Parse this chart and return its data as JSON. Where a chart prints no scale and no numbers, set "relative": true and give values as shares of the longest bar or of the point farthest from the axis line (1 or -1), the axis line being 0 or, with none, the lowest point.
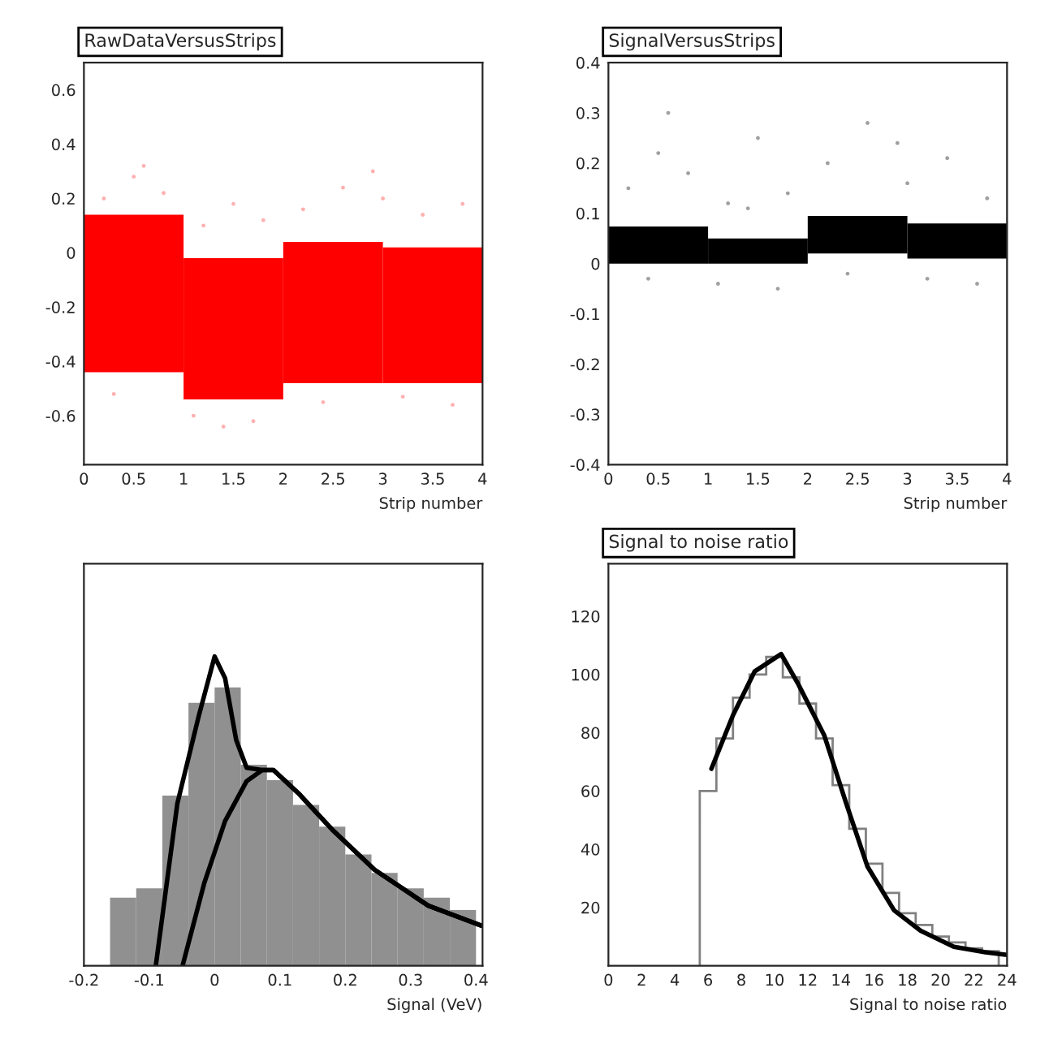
{
  "chart_data": [
    {
      "type": "bar",
      "title": "RawDataVersusStrips",
      "xlabel": "Strip number",
      "xlim": [
        0,
        4
      ],
      "xticks": [
        0,
        0.5,
        1,
        1.5,
        2,
        2.5,
        3,
        3.5,
        4
      ],
      "ylim": [
        -0.78,
        0.7
      ],
      "yticks": [
        -0.6,
        -0.4,
        -0.2,
        0,
        0.2,
        0.4,
        0.6
      ],
      "series": [
        {
          "color": "#ff0000",
          "x": [
            0.5,
            1.5,
            2.5,
            3.5
          ],
          "base": [
            -0.44,
            -0.54,
            -0.48,
            -0.48
          ],
          "values": [
            0.58,
            0.52,
            0.52,
            0.5
          ]
        },
        {
          "type": "scatter",
          "color": "#ffb0b0",
          "x": [
            0.2,
            0.5,
            0.8,
            1.2,
            1.5,
            1.8,
            2.2,
            2.6,
            3.0,
            3.4,
            3.8,
            0.3,
            1.1,
            1.7,
            2.4,
            3.2,
            3.7,
            0.6,
            2.9,
            1.4
          ],
          "values": [
            0.2,
            0.28,
            0.22,
            0.1,
            0.18,
            0.12,
            0.16,
            0.24,
            0.2,
            0.14,
            0.18,
            -0.52,
            -0.6,
            -0.62,
            -0.55,
            -0.53,
            -0.56,
            0.32,
            0.3,
            -0.64
          ]
        }
      ]
    },
    {
      "type": "bar",
      "title": "SignalVersusStrips",
      "xlabel": "Strip number",
      "xlim": [
        0,
        4
      ],
      "xticks": [
        0,
        0.5,
        1,
        1.5,
        2,
        2.5,
        3,
        3.5,
        4
      ],
      "ylim": [
        -0.4,
        0.4
      ],
      "yticks": [
        -0.4,
        -0.3,
        -0.2,
        -0.1,
        0,
        0.1,
        0.2,
        0.3,
        0.4
      ],
      "series": [
        {
          "color": "#000000",
          "x": [
            0.5,
            1.5,
            2.5,
            3.5
          ],
          "base": [
            0.0,
            0.0,
            0.02,
            0.01
          ],
          "values": [
            0.074,
            0.05,
            0.075,
            0.07
          ]
        },
        {
          "type": "scatter",
          "color": "#a0a0a0",
          "x": [
            0.2,
            0.5,
            0.8,
            1.2,
            1.5,
            1.8,
            2.2,
            2.6,
            3.0,
            3.4,
            3.8,
            0.4,
            1.1,
            1.7,
            2.4,
            3.2,
            3.7,
            0.6,
            2.9,
            1.4
          ],
          "values": [
            0.15,
            0.22,
            0.18,
            0.12,
            0.25,
            0.14,
            0.2,
            0.28,
            0.16,
            0.21,
            0.13,
            -0.03,
            -0.04,
            -0.05,
            -0.02,
            -0.03,
            -0.04,
            0.3,
            0.24,
            0.11
          ]
        }
      ]
    },
    {
      "type": "line",
      "relative": true,
      "xlabel": "Signal (VeV)",
      "xlim": [
        -0.2,
        0.41
      ],
      "xticks": [
        -0.2,
        -0.1,
        0,
        0.1,
        0.2,
        0.3,
        0.4
      ],
      "series": [
        {
          "type": "bar",
          "color": "#909090",
          "x": [
            -0.14,
            -0.1,
            -0.06,
            -0.02,
            0.02,
            0.06,
            0.1,
            0.14,
            0.18,
            0.22,
            0.26,
            0.3,
            0.34,
            0.38
          ],
          "values": [
            0.22,
            0.25,
            0.55,
            0.85,
            0.9,
            0.65,
            0.6,
            0.52,
            0.45,
            0.36,
            0.3,
            0.25,
            0.22,
            0.18
          ]
        },
        {
          "color": "#000000",
          "x": [
            -0.09,
            -0.057,
            -0.024,
            0,
            0.016,
            0.033,
            0.049,
            0.073,
            0.09,
            0.13,
            0.18,
            0.245,
            0.327,
            0.408
          ],
          "values": [
            0,
            0.525,
            0.81,
            1,
            0.93,
            0.73,
            0.64,
            0.633,
            0.633,
            0.554,
            0.44,
            0.31,
            0.194,
            0.13
          ]
        },
        {
          "color": "#000000",
          "x": [
            -0.049,
            -0.016,
            0.016,
            0.049,
            0.073,
            0.09,
            0.13,
            0.18,
            0.245,
            0.327,
            0.408
          ],
          "values": [
            0,
            0.266,
            0.468,
            0.597,
            0.633,
            0.633,
            0.554,
            0.44,
            0.31,
            0.194,
            0.13
          ]
        }
      ]
    },
    {
      "type": "histogram",
      "title": "Signal to noise ratio",
      "xlabel": "Signal to noise ratio",
      "xlim": [
        0,
        24
      ],
      "xticks": [
        0,
        2,
        4,
        6,
        8,
        10,
        12,
        14,
        16,
        18,
        20,
        22,
        24
      ],
      "ylim": [
        0,
        138
      ],
      "yticks": [
        20,
        40,
        60,
        80,
        100,
        120
      ],
      "series": [
        {
          "color": "#808080",
          "bins": [
            5.5,
            6.5,
            7.5,
            8.5,
            9.5,
            10.5,
            11.5,
            12.5,
            13.5,
            14.5,
            15.5,
            16.5,
            17.5,
            18.5,
            19.5,
            20.5,
            21.5,
            22.5,
            23.5
          ],
          "values": [
            60,
            78,
            92,
            100,
            106,
            99,
            90,
            78,
            62,
            47,
            35,
            25,
            18,
            14,
            10,
            8,
            6,
            5
          ]
        },
        {
          "type": "line",
          "color": "#000000",
          "x": [
            6.2,
            7.5,
            8.8,
            10.4,
            11.4,
            13,
            14.3,
            15.6,
            17.2,
            18.8,
            20.8,
            22.7,
            24
          ],
          "values": [
            67.6,
            86,
            101,
            107,
            97,
            79,
            56,
            34,
            19,
            12,
            6.5,
            4.6,
            3.7
          ]
        }
      ]
    }
  ]
}
